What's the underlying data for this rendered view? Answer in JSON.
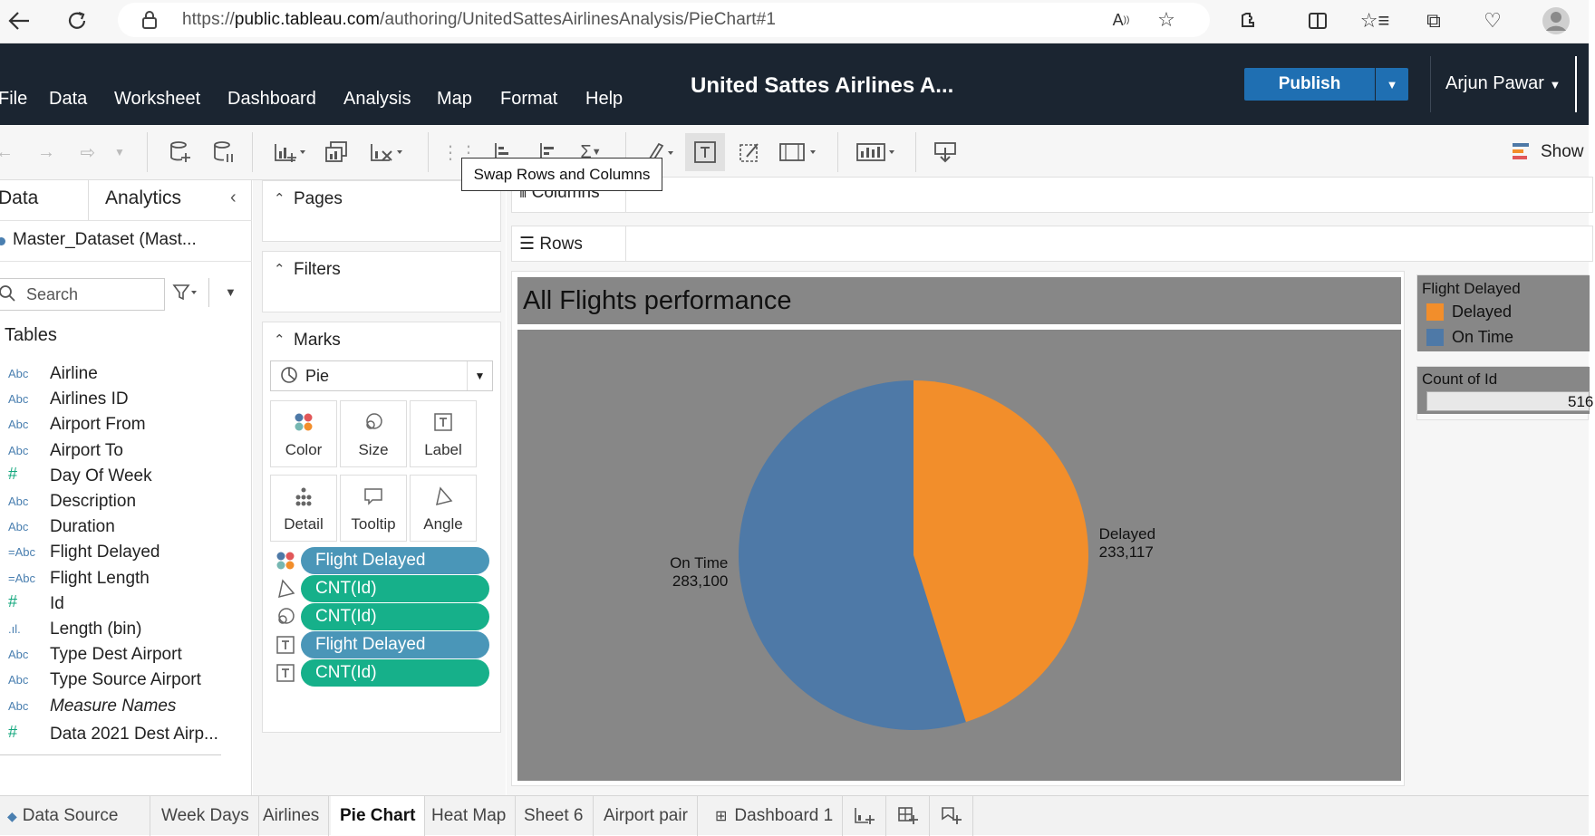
{
  "browser": {
    "url_prefix": "https://",
    "url_host": "public.tableau.com",
    "url_path": "/authoring/UnitedSattesAirlinesAnalysis/PieChart#1"
  },
  "menu": [
    "File",
    "Data",
    "Worksheet",
    "Dashboard",
    "Analysis",
    "Map",
    "Format",
    "Help"
  ],
  "header": {
    "title": "United Sattes Airlines A...",
    "publish_label": "Publish",
    "user": "Arjun Pawar"
  },
  "toolbar": {
    "show_label": "Show",
    "tooltip": "Swap Rows and Columns"
  },
  "data_pane": {
    "tab_data": "Data",
    "tab_analytics": "Analytics",
    "datasource": "Master_Dataset (Mast...",
    "search_placeholder": "Search",
    "tables_heading": "Tables",
    "fields": [
      {
        "type": "Abc",
        "name": "Airline"
      },
      {
        "type": "Abc",
        "name": "Airlines ID"
      },
      {
        "type": "Abc",
        "name": "Airport From"
      },
      {
        "type": "Abc",
        "name": "Airport To"
      },
      {
        "type": "#",
        "name": "Day Of Week"
      },
      {
        "type": "Abc",
        "name": "Description"
      },
      {
        "type": "Abc",
        "name": "Duration"
      },
      {
        "type": "=Abc",
        "name": "Flight Delayed"
      },
      {
        "type": "=Abc",
        "name": "Flight Length"
      },
      {
        "type": "#",
        "name": "Id"
      },
      {
        "type": ".ıl.",
        "name": "Length (bin)"
      },
      {
        "type": "Abc",
        "name": "Type Dest Airport"
      },
      {
        "type": "Abc",
        "name": "Type Source Airport"
      },
      {
        "type": "Abc",
        "name": "Measure Names"
      },
      {
        "type": "#",
        "name": "Data 2021 Dest Airp..."
      }
    ]
  },
  "shelves": {
    "pages": "Pages",
    "filters": "Filters",
    "marks": "Marks",
    "mark_type": "Pie",
    "mark_buttons": [
      "Color",
      "Size",
      "Label",
      "Detail",
      "Tooltip",
      "Angle"
    ],
    "pills": [
      {
        "label": "Flight Delayed",
        "color": "#4a96b8",
        "icon": "color-icon"
      },
      {
        "label": "CNT(Id)",
        "color": "#16b08a",
        "icon": "angle-icon"
      },
      {
        "label": "CNT(Id)",
        "color": "#16b08a",
        "icon": "size-icon"
      },
      {
        "label": "Flight Delayed",
        "color": "#4a96b8",
        "icon": "label-icon"
      },
      {
        "label": "CNT(Id)",
        "color": "#16b08a",
        "icon": "label-icon"
      }
    ]
  },
  "canvas": {
    "columns_label": "Columns",
    "rows_label": "Rows"
  },
  "legend": {
    "title": "Flight Delayed",
    "items": [
      {
        "label": "Delayed",
        "color": "#f28e2b"
      },
      {
        "label": "On Time",
        "color": "#4e79a7"
      }
    ],
    "size_title": "Count of Id",
    "size_value": "516"
  },
  "chart_data": {
    "type": "pie",
    "title": "All Flights performance",
    "slices": [
      {
        "label": "Delayed",
        "value": 233117,
        "value_text": "233,117",
        "color": "#f28e2b"
      },
      {
        "label": "On Time",
        "value": 283100,
        "value_text": "283,100",
        "color": "#4e79a7"
      }
    ]
  },
  "bottom_tabs": [
    "Data Source",
    "Week Days",
    "Airlines",
    "Pie Chart",
    "Heat Map",
    "Sheet 6",
    "Airport pair",
    "Dashboard 1"
  ],
  "active_tab": "Pie Chart"
}
